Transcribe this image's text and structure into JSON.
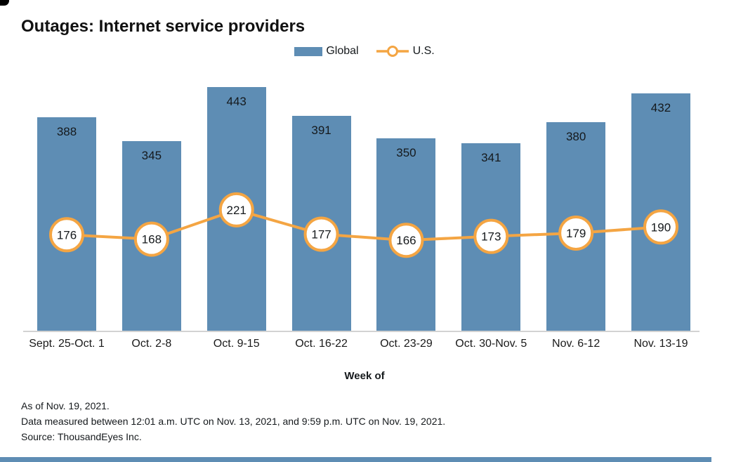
{
  "chart_data": {
    "type": "bar",
    "combo": "bar+line",
    "title": "Outages: Internet service providers",
    "categories": [
      "Sept. 25-Oct. 1",
      "Oct. 2-8",
      "Oct. 9-15",
      "Oct. 16-22",
      "Oct. 23-29",
      "Oct. 30-Nov. 5",
      "Nov. 6-12",
      "Nov. 13-19"
    ],
    "series": [
      {
        "name": "Global",
        "type": "bar",
        "color": "#5E8DB4",
        "values": [
          388,
          345,
          443,
          391,
          350,
          341,
          380,
          432
        ]
      },
      {
        "name": "U.S.",
        "type": "line",
        "color": "#F4A543",
        "marker": "open-circle-with-value",
        "values": [
          176,
          168,
          221,
          177,
          166,
          173,
          179,
          190
        ]
      }
    ],
    "xlabel": "Week of",
    "ylabel": "",
    "ylim": [
      0,
      460
    ],
    "grid": false,
    "y_axis_shown": false,
    "value_labels": true,
    "legend_position": "top-center"
  },
  "footer": {
    "lines": [
      "As of Nov. 19, 2021.",
      "Data measured between 12:01 a.m. UTC on Nov. 13, 2021, and 9:59 p.m. UTC on Nov. 19, 2021.",
      "Source: ThousandEyes Inc."
    ]
  }
}
